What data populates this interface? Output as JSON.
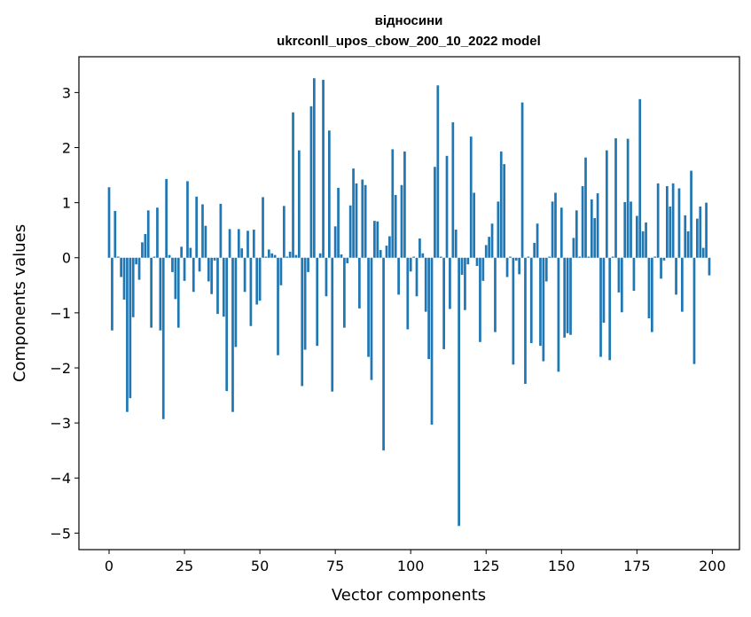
{
  "chart_data": {
    "type": "bar",
    "title_line1": "відносини",
    "title_line2": "ukrconll_upos_cbow_200_10_2022 model",
    "xlabel": "Vector components",
    "ylabel": "Components values",
    "xlim": [
      -10,
      209
    ],
    "ylim": [
      -5.3,
      3.65
    ],
    "xticks": [
      0,
      25,
      50,
      75,
      100,
      125,
      150,
      175,
      200
    ],
    "xtick_labels": [
      "0",
      "25",
      "50",
      "75",
      "100",
      "125",
      "150",
      "175",
      "200"
    ],
    "yticks": [
      -5,
      -4,
      -3,
      -2,
      -1,
      0,
      1,
      2,
      3
    ],
    "ytick_labels": [
      "−5",
      "−4",
      "−3",
      "−2",
      "−1",
      "0",
      "1",
      "2",
      "3"
    ],
    "bar_color": "#1f77b4",
    "values": [
      1.28,
      -1.32,
      0.85,
      0.02,
      -0.35,
      -0.76,
      -2.8,
      -2.55,
      -1.08,
      -0.12,
      -0.4,
      0.28,
      0.43,
      0.86,
      -1.27,
      0.02,
      0.91,
      -1.32,
      -2.93,
      1.43,
      0.05,
      -0.26,
      -0.75,
      -1.27,
      0.2,
      -0.42,
      1.39,
      0.18,
      -0.62,
      1.11,
      -0.25,
      0.97,
      0.58,
      -0.43,
      -0.66,
      -0.05,
      -1.02,
      0.98,
      -1.07,
      -2.42,
      0.52,
      -2.8,
      -1.62,
      0.52,
      0.17,
      -0.62,
      0.49,
      -1.24,
      0.51,
      -0.85,
      -0.78,
      1.1,
      0.02,
      0.15,
      0.08,
      0.05,
      -1.77,
      -0.5,
      0.94,
      0.02,
      0.11,
      2.64,
      0.05,
      1.95,
      -2.33,
      -1.67,
      -0.26,
      2.75,
      3.26,
      -1.6,
      0.08,
      3.23,
      -0.7,
      2.31,
      -2.43,
      0.57,
      1.27,
      0.06,
      -1.27,
      -0.1,
      0.95,
      1.62,
      1.35,
      -0.92,
      1.42,
      1.32,
      -1.8,
      -2.22,
      0.67,
      0.66,
      0.14,
      -3.5,
      0.22,
      0.39,
      1.97,
      1.14,
      -0.67,
      1.32,
      1.93,
      -1.3,
      -0.25,
      0.02,
      -0.7,
      0.35,
      0.08,
      -0.98,
      -1.84,
      -3.03,
      1.65,
      3.13,
      0.02,
      -1.66,
      1.85,
      -0.93,
      2.46,
      0.51,
      -4.87,
      -0.31,
      -0.95,
      -0.12,
      2.2,
      1.18,
      -0.15,
      -1.53,
      -0.42,
      0.23,
      0.38,
      0.62,
      -1.35,
      1.02,
      1.93,
      1.7,
      -0.35,
      0.02,
      -1.94,
      -0.05,
      -0.3,
      2.82,
      -2.29,
      0.02,
      -1.55,
      0.27,
      0.62,
      -1.6,
      -1.88,
      -0.43,
      0.02,
      1.02,
      1.18,
      -2.07,
      0.91,
      -1.45,
      -1.37,
      -1.4,
      0.36,
      0.86,
      0.02,
      1.3,
      1.82,
      0.02,
      1.06,
      0.72,
      1.17,
      -1.8,
      -1.18,
      1.95,
      -1.86,
      0.02,
      2.17,
      -0.63,
      -0.99,
      1.01,
      2.16,
      1.02,
      -0.6,
      0.76,
      2.88,
      0.48,
      0.64,
      -1.1,
      -1.35,
      0.02,
      1.35,
      -0.38,
      -0.05,
      1.3,
      0.93,
      1.35,
      -0.67,
      1.26,
      -0.98,
      0.77,
      0.48,
      1.58,
      -1.93,
      0.71,
      0.93,
      0.18,
      1.0,
      -0.32
    ]
  }
}
